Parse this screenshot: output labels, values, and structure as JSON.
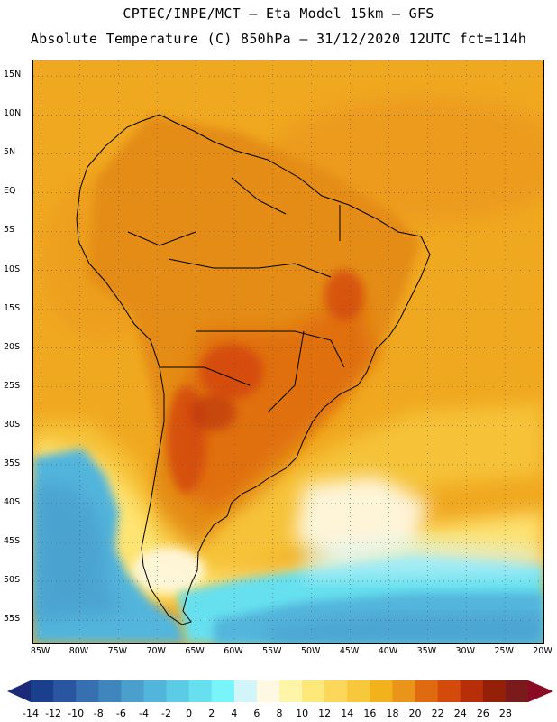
{
  "header": {
    "line1": "CPTEC/INPE/MCT –  Eta Model 15km – GFS",
    "line2": "Absolute Temperature (C) 850hPa – 31/12/2020 12UTC fct=114h"
  },
  "map": {
    "region": "South America",
    "variable": "Absolute Temperature (C) 850hPa",
    "lat_range": [
      -58,
      17
    ],
    "lon_range": [
      -86,
      -20
    ],
    "lat_ticks": [
      "15N",
      "10N",
      "5N",
      "EQ",
      "5S",
      "10S",
      "15S",
      "20S",
      "25S",
      "30S",
      "35S",
      "40S",
      "45S",
      "50S",
      "55S"
    ],
    "lat_values": [
      15,
      10,
      5,
      0,
      -5,
      -10,
      -15,
      -20,
      -25,
      -30,
      -35,
      -40,
      -45,
      -50,
      -55
    ],
    "lon_ticks": [
      "85W",
      "80W",
      "75W",
      "70W",
      "65W",
      "60W",
      "55W",
      "50W",
      "45W",
      "40W",
      "35W",
      "30W",
      "25W",
      "20W"
    ],
    "lon_values": [
      -85,
      -80,
      -75,
      -70,
      -65,
      -60,
      -55,
      -50,
      -45,
      -40,
      -35,
      -30,
      -25,
      -20
    ],
    "ocean_color": "#f0a820",
    "land_color": "#e8921a"
  },
  "colorbar": {
    "labels": [
      "-14",
      "-12",
      "-10",
      "-8",
      "-6",
      "-4",
      "-2",
      "0",
      "2",
      "4",
      "6",
      "8",
      "10",
      "12",
      "14",
      "16",
      "18",
      "20",
      "22",
      "24",
      "26",
      "28"
    ],
    "colors": [
      "#1a3f8c",
      "#2a55a0",
      "#3670b0",
      "#3f86bf",
      "#4a9fcd",
      "#52b5dc",
      "#5ccbe6",
      "#66e0ee",
      "#78f5fa",
      "#d2f5fa",
      "#fff8e2",
      "#fff5a8",
      "#ffe87a",
      "#fcd75a",
      "#f7c73c",
      "#f2b21c",
      "#ea951a",
      "#e06a10",
      "#d44a0a",
      "#b82e08",
      "#942008",
      "#7a1a1a"
    ],
    "under_color": "#1a2a78",
    "over_color": "#8a0a24"
  }
}
